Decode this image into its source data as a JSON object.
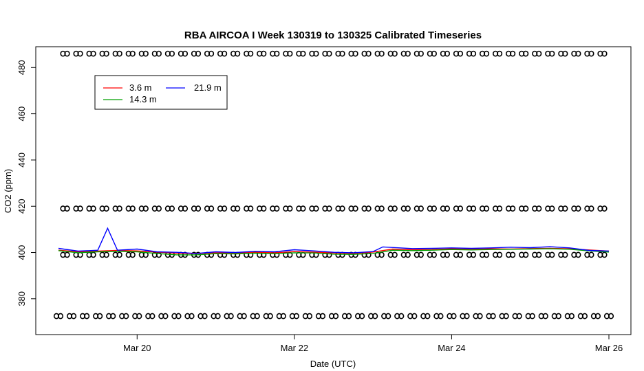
{
  "chart_data": {
    "type": "line",
    "title": "RBA AIRCOA I  Week 130319 to 130325  Calibrated Timeseries",
    "xlabel": "Date (UTC)",
    "ylabel": "CO2 (ppm)",
    "x_range": [
      "2013-03-19 00:00",
      "2013-03-26 00:00"
    ],
    "ylim": [
      364.5,
      489
    ],
    "x_ticks": [
      {
        "date": "2013-03-20",
        "label": "Mar 20"
      },
      {
        "date": "2013-03-22",
        "label": "Mar 22"
      },
      {
        "date": "2013-03-24",
        "label": "Mar 24"
      },
      {
        "date": "2013-03-26",
        "label": "Mar 26"
      }
    ],
    "y_ticks": [
      380,
      400,
      420,
      440,
      460,
      480
    ],
    "grid": false,
    "legend": {
      "placement": "top-left",
      "entries": [
        {
          "label": "3.6 m",
          "color": "#ff0000"
        },
        {
          "label": "21.9 m",
          "color": "#0000ff"
        },
        {
          "label": "14.3 m",
          "color": "#00a000"
        }
      ]
    },
    "series": [
      {
        "name": "3.6 m",
        "color": "#ff0000",
        "points": [
          [
            "2013-03-19 00:00",
            401.0
          ],
          [
            "2013-03-19 06:00",
            400.3
          ],
          [
            "2013-03-19 12:00",
            400.6
          ],
          [
            "2013-03-19 18:00",
            400.9
          ],
          [
            "2013-03-20 00:00",
            400.7
          ],
          [
            "2013-03-20 06:00",
            400.2
          ],
          [
            "2013-03-20 12:00",
            399.7
          ],
          [
            "2013-03-20 18:00",
            399.5
          ],
          [
            "2013-03-21 00:00",
            399.9
          ],
          [
            "2013-03-21 06:00",
            399.8
          ],
          [
            "2013-03-21 12:00",
            400.1
          ],
          [
            "2013-03-21 18:00",
            399.9
          ],
          [
            "2013-03-22 00:00",
            400.4
          ],
          [
            "2013-03-22 06:00",
            400.2
          ],
          [
            "2013-03-22 12:00",
            399.8
          ],
          [
            "2013-03-22 18:00",
            399.6
          ],
          [
            "2013-03-23 00:00",
            400.2
          ],
          [
            "2013-03-23 06:00",
            401.5
          ],
          [
            "2013-03-23 12:00",
            401.2
          ],
          [
            "2013-03-23 18:00",
            401.3
          ],
          [
            "2013-03-24 00:00",
            401.6
          ],
          [
            "2013-03-24 06:00",
            401.4
          ],
          [
            "2013-03-24 12:00",
            401.6
          ],
          [
            "2013-03-24 18:00",
            401.5
          ],
          [
            "2013-03-25 00:00",
            401.7
          ],
          [
            "2013-03-25 06:00",
            401.8
          ],
          [
            "2013-03-25 12:00",
            401.6
          ],
          [
            "2013-03-25 18:00",
            401.1
          ],
          [
            "2013-03-26 00:00",
            400.6
          ]
        ]
      },
      {
        "name": "14.3 m",
        "color": "#00a000",
        "points": [
          [
            "2013-03-19 00:00",
            400.8
          ],
          [
            "2013-03-19 06:00",
            399.9
          ],
          [
            "2013-03-19 12:00",
            400.3
          ],
          [
            "2013-03-19 18:00",
            400.5
          ],
          [
            "2013-03-20 00:00",
            400.3
          ],
          [
            "2013-03-20 06:00",
            399.6
          ],
          [
            "2013-03-20 12:00",
            399.0
          ],
          [
            "2013-03-20 18:00",
            399.0
          ],
          [
            "2013-03-21 00:00",
            399.5
          ],
          [
            "2013-03-21 06:00",
            399.4
          ],
          [
            "2013-03-21 12:00",
            399.7
          ],
          [
            "2013-03-21 18:00",
            399.5
          ],
          [
            "2013-03-22 00:00",
            399.9
          ],
          [
            "2013-03-22 06:00",
            399.8
          ],
          [
            "2013-03-22 12:00",
            399.3
          ],
          [
            "2013-03-22 18:00",
            399.2
          ],
          [
            "2013-03-23 00:00",
            399.6
          ],
          [
            "2013-03-23 06:00",
            401.0
          ],
          [
            "2013-03-23 12:00",
            400.8
          ],
          [
            "2013-03-23 18:00",
            401.0
          ],
          [
            "2013-03-24 00:00",
            401.3
          ],
          [
            "2013-03-24 06:00",
            401.1
          ],
          [
            "2013-03-24 12:00",
            401.3
          ],
          [
            "2013-03-24 18:00",
            401.4
          ],
          [
            "2013-03-25 00:00",
            401.5
          ],
          [
            "2013-03-25 06:00",
            401.6
          ],
          [
            "2013-03-25 12:00",
            401.4
          ],
          [
            "2013-03-25 18:00",
            400.7
          ],
          [
            "2013-03-26 00:00",
            400.2
          ]
        ]
      },
      {
        "name": "21.9 m",
        "color": "#0000ff",
        "points": [
          [
            "2013-03-19 00:00",
            401.8
          ],
          [
            "2013-03-19 06:00",
            400.6
          ],
          [
            "2013-03-19 12:00",
            401.0
          ],
          [
            "2013-03-19 15:00",
            410.5
          ],
          [
            "2013-03-19 18:00",
            401.0
          ],
          [
            "2013-03-20 00:00",
            401.5
          ],
          [
            "2013-03-20 06:00",
            400.3
          ],
          [
            "2013-03-20 12:00",
            400.1
          ],
          [
            "2013-03-20 18:00",
            399.6
          ],
          [
            "2013-03-21 00:00",
            400.3
          ],
          [
            "2013-03-21 06:00",
            400.0
          ],
          [
            "2013-03-21 12:00",
            400.5
          ],
          [
            "2013-03-21 18:00",
            400.3
          ],
          [
            "2013-03-22 00:00",
            401.2
          ],
          [
            "2013-03-22 06:00",
            400.7
          ],
          [
            "2013-03-22 12:00",
            400.1
          ],
          [
            "2013-03-22 18:00",
            399.9
          ],
          [
            "2013-03-23 00:00",
            400.4
          ],
          [
            "2013-03-23 03:00",
            402.4
          ],
          [
            "2013-03-23 12:00",
            401.7
          ],
          [
            "2013-03-23 18:00",
            401.8
          ],
          [
            "2013-03-24 00:00",
            402.0
          ],
          [
            "2013-03-24 06:00",
            401.8
          ],
          [
            "2013-03-24 12:00",
            402.0
          ],
          [
            "2013-03-24 18:00",
            402.3
          ],
          [
            "2013-03-25 00:00",
            402.1
          ],
          [
            "2013-03-25 06:00",
            402.5
          ],
          [
            "2013-03-25 12:00",
            402.0
          ],
          [
            "2013-03-25 18:00",
            400.9
          ],
          [
            "2013-03-26 00:00",
            400.6
          ]
        ]
      }
    ],
    "marker_rows": [
      {
        "y": 486.0,
        "start": "2013-03-19 02:00",
        "step_hours": 4,
        "count": 42
      },
      {
        "y": 419.0,
        "start": "2013-03-19 02:00",
        "step_hours": 4,
        "count": 42
      },
      {
        "y": 399.0,
        "start": "2013-03-19 02:00",
        "step_hours": 4,
        "count": 42
      },
      {
        "y": 372.5,
        "start": "2013-03-19 00:00",
        "step_hours": 4,
        "count": 43
      }
    ]
  }
}
